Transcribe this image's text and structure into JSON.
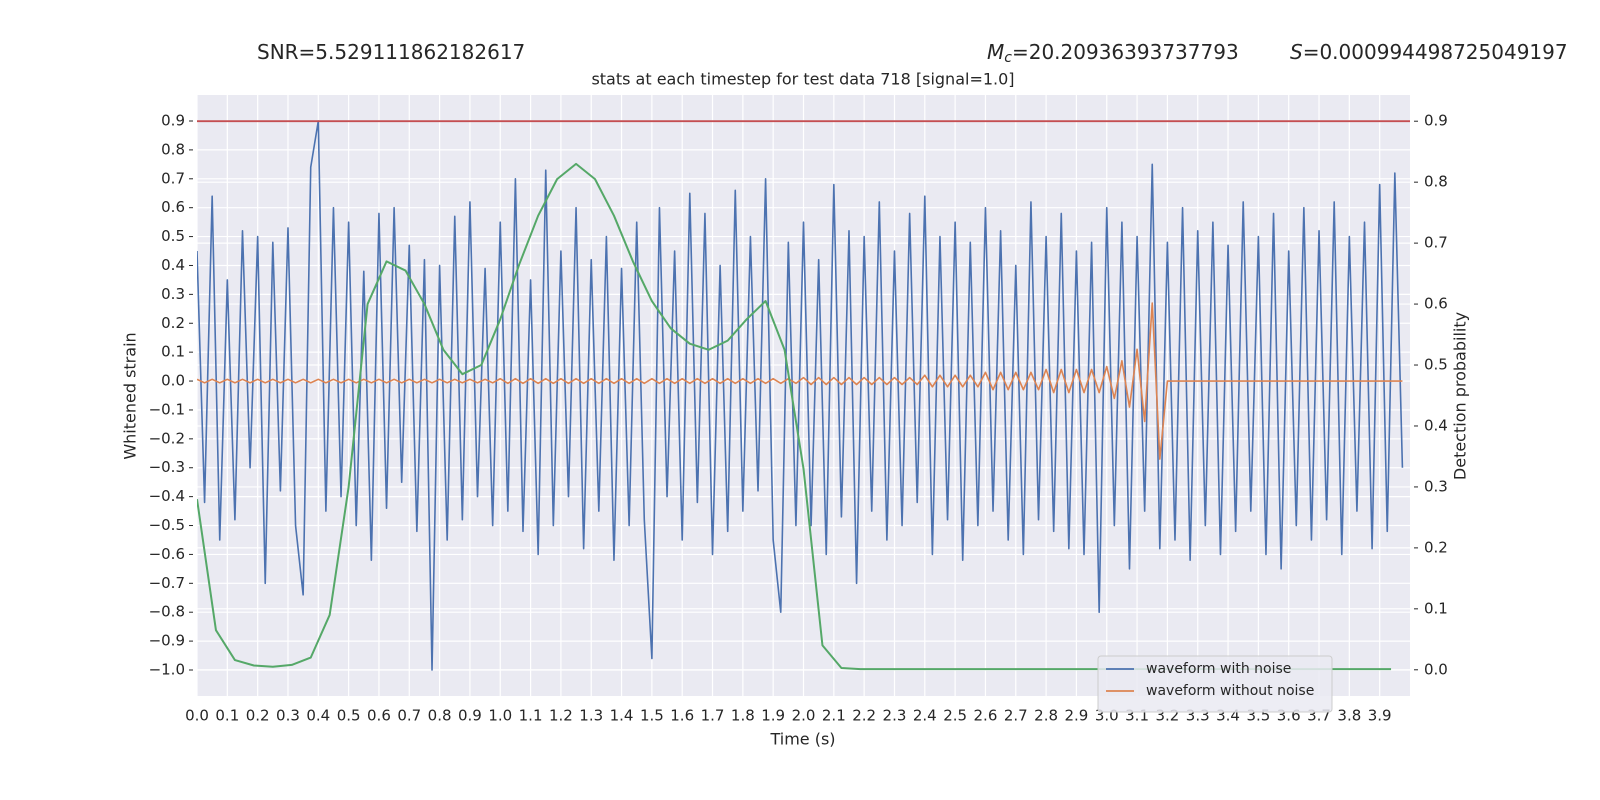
{
  "chart_data": {
    "type": "line",
    "title": "stats at each timestep for test data 718 [signal=1.0]",
    "annotations": [
      {
        "text": "SNR=5.529111862182617"
      },
      {
        "symbol": "M",
        "subscript": "c",
        "text": "=20.20936393737793"
      },
      {
        "symbol": "S",
        "text": "=0.000994498725049197"
      }
    ],
    "xlabel": "Time (s)",
    "ylabel": "Whitened strain",
    "y2label": "Detection probability",
    "grid": true,
    "background": "#eaeaf2",
    "legend_loc": "lower right",
    "xlim": [
      0,
      4.0
    ],
    "ylim": [
      -1.09,
      0.99
    ],
    "y2lim": [
      -0.043,
      0.943
    ],
    "xticks": [
      {
        "value": 0,
        "label": "0.0"
      },
      0.1,
      0.2,
      0.3,
      0.4,
      0.5,
      0.6,
      0.7,
      0.8,
      0.9,
      {
        "value": 1,
        "label": "1.0"
      },
      1.1,
      1.2,
      1.3,
      1.4,
      1.5,
      1.6,
      1.7,
      1.8,
      1.9,
      {
        "value": 2,
        "label": "2.0"
      },
      2.1,
      2.2,
      2.3,
      2.4,
      2.5,
      2.6,
      2.7,
      2.8,
      2.9,
      {
        "value": 3,
        "label": "3.0"
      },
      3.1,
      3.2,
      3.3,
      3.4,
      3.5,
      3.6,
      3.7,
      3.8,
      3.9
    ],
    "yticks": [
      {
        "value": -1.0,
        "label": "−1.0"
      },
      {
        "value": -0.9,
        "label": "−0.9"
      },
      {
        "value": -0.8,
        "label": "−0.8"
      },
      {
        "value": -0.7,
        "label": "−0.7"
      },
      {
        "value": -0.6,
        "label": "−0.6"
      },
      {
        "value": -0.5,
        "label": "−0.5"
      },
      {
        "value": -0.4,
        "label": "−0.4"
      },
      {
        "value": -0.3,
        "label": "−0.3"
      },
      {
        "value": -0.2,
        "label": "−0.2"
      },
      {
        "value": -0.1,
        "label": "−0.1"
      },
      {
        "value": 0,
        "label": "0.0"
      },
      0.1,
      0.2,
      0.3,
      0.4,
      0.5,
      0.6,
      0.7,
      0.8,
      0.9
    ],
    "y2ticks": [
      {
        "value": 0,
        "label": "0.0"
      },
      0.1,
      0.2,
      0.3,
      0.4,
      0.5,
      0.6,
      0.7,
      0.8,
      0.9
    ],
    "threshold": 0.9,
    "threshold_color": "#c44e52",
    "x": [
      0,
      0.025,
      0.05,
      0.075,
      0.1,
      0.125,
      0.15,
      0.175,
      0.2,
      0.225,
      0.25,
      0.275,
      0.3,
      0.325,
      0.35,
      0.375,
      0.4,
      0.425,
      0.45,
      0.475,
      0.5,
      0.525,
      0.55,
      0.575,
      0.6,
      0.625,
      0.65,
      0.675,
      0.7,
      0.725,
      0.75,
      0.775,
      0.8,
      0.825,
      0.85,
      0.875,
      0.9,
      0.925,
      0.95,
      0.975,
      1,
      1.025,
      1.05,
      1.075,
      1.1,
      1.125,
      1.15,
      1.175,
      1.2,
      1.225,
      1.25,
      1.275,
      1.3,
      1.325,
      1.35,
      1.375,
      1.4,
      1.425,
      1.45,
      1.475,
      1.5,
      1.525,
      1.55,
      1.575,
      1.6,
      1.625,
      1.65,
      1.675,
      1.7,
      1.725,
      1.75,
      1.775,
      1.8,
      1.825,
      1.85,
      1.875,
      1.9,
      1.925,
      1.95,
      1.975,
      2,
      2.025,
      2.05,
      2.075,
      2.1,
      2.125,
      2.15,
      2.175,
      2.2,
      2.225,
      2.25,
      2.275,
      2.3,
      2.325,
      2.35,
      2.375,
      2.4,
      2.425,
      2.45,
      2.475,
      2.5,
      2.525,
      2.55,
      2.575,
      2.6,
      2.625,
      2.65,
      2.675,
      2.7,
      2.725,
      2.75,
      2.775,
      2.8,
      2.825,
      2.85,
      2.875,
      2.9,
      2.925,
      2.95,
      2.975,
      3,
      3.025,
      3.05,
      3.075,
      3.1,
      3.125,
      3.15,
      3.175,
      3.2,
      3.225,
      3.25,
      3.275,
      3.3,
      3.325,
      3.35,
      3.375,
      3.4,
      3.425,
      3.45,
      3.475,
      3.5,
      3.525,
      3.55,
      3.575,
      3.6,
      3.625,
      3.65,
      3.675,
      3.7,
      3.725,
      3.75,
      3.775,
      3.8,
      3.825,
      3.85,
      3.875,
      3.9,
      3.925,
      3.95,
      3.975
    ],
    "series": [
      {
        "name": "waveform with noise",
        "color": "#4c72b0",
        "values": [
          0.45,
          -0.42,
          0.64,
          -0.55,
          0.35,
          -0.48,
          0.52,
          -0.3,
          0.5,
          -0.7,
          0.48,
          -0.38,
          0.53,
          -0.5,
          -0.74,
          0.74,
          0.9,
          -0.45,
          0.6,
          -0.4,
          0.55,
          -0.5,
          0.38,
          -0.62,
          0.58,
          -0.44,
          0.6,
          -0.35,
          0.47,
          -0.52,
          0.42,
          -1.0,
          0.4,
          -0.55,
          0.57,
          -0.48,
          0.62,
          -0.4,
          0.39,
          -0.5,
          0.55,
          -0.45,
          0.7,
          -0.52,
          0.35,
          -0.6,
          0.73,
          -0.5,
          0.45,
          -0.4,
          0.6,
          -0.58,
          0.42,
          -0.45,
          0.5,
          -0.62,
          0.39,
          -0.5,
          0.55,
          -0.48,
          -0.96,
          0.6,
          -0.4,
          0.45,
          -0.55,
          0.65,
          -0.42,
          0.58,
          -0.6,
          0.4,
          -0.52,
          0.66,
          -0.45,
          0.5,
          -0.38,
          0.7,
          -0.55,
          -0.8,
          0.48,
          -0.5,
          0.55,
          -0.5,
          0.42,
          -0.6,
          0.68,
          -0.47,
          0.52,
          -0.7,
          0.5,
          -0.45,
          0.62,
          -0.55,
          0.45,
          -0.5,
          0.58,
          -0.42,
          0.64,
          -0.6,
          0.5,
          -0.48,
          0.55,
          -0.62,
          0.48,
          -0.5,
          0.6,
          -0.45,
          0.52,
          -0.55,
          0.4,
          -0.6,
          0.62,
          -0.48,
          0.5,
          -0.52,
          0.58,
          -0.58,
          0.45,
          -0.6,
          0.48,
          -0.8,
          0.6,
          -0.5,
          0.55,
          -0.65,
          0.5,
          -0.45,
          0.75,
          -0.58,
          0.48,
          -0.55,
          0.6,
          -0.62,
          0.52,
          -0.5,
          0.55,
          -0.6,
          0.47,
          -0.52,
          0.62,
          -0.45,
          0.5,
          -0.6,
          0.58,
          -0.65,
          0.45,
          -0.5,
          0.6,
          -0.55,
          0.52,
          -0.48,
          0.62,
          -0.6,
          0.5,
          -0.45,
          0.55,
          -0.58,
          0.68,
          -0.52,
          0.72,
          -0.3
        ]
      },
      {
        "name": "waveform without noise",
        "color": "#dd8452",
        "values": [
          0.006,
          -0.006,
          0.006,
          -0.006,
          0.006,
          -0.006,
          0.006,
          -0.006,
          0.006,
          -0.006,
          0.006,
          -0.006,
          0.006,
          -0.006,
          0.006,
          -0.006,
          0.006,
          -0.006,
          0.006,
          -0.006,
          0.006,
          -0.006,
          0.006,
          -0.006,
          0.006,
          -0.006,
          0.006,
          -0.006,
          0.006,
          -0.006,
          0.006,
          -0.006,
          0.006,
          -0.006,
          0.006,
          -0.006,
          0.006,
          -0.006,
          0.006,
          -0.006,
          0.008,
          -0.008,
          0.008,
          -0.008,
          0.008,
          -0.008,
          0.008,
          -0.008,
          0.008,
          -0.008,
          0.008,
          -0.008,
          0.008,
          -0.008,
          0.008,
          -0.008,
          0.008,
          -0.008,
          0.008,
          -0.008,
          0.008,
          -0.008,
          0.008,
          -0.008,
          0.008,
          -0.008,
          0.008,
          -0.008,
          0.008,
          -0.008,
          0.008,
          -0.008,
          0.008,
          -0.008,
          0.008,
          -0.008,
          0.008,
          -0.008,
          0.008,
          -0.008,
          0.012,
          -0.012,
          0.012,
          -0.012,
          0.012,
          -0.012,
          0.012,
          -0.012,
          0.012,
          -0.012,
          0.012,
          -0.012,
          0.012,
          -0.012,
          0.012,
          -0.012,
          0.02,
          -0.02,
          0.02,
          -0.02,
          0.02,
          -0.02,
          0.02,
          -0.02,
          0.03,
          -0.03,
          0.03,
          -0.03,
          0.03,
          -0.03,
          0.03,
          -0.03,
          0.04,
          -0.04,
          0.04,
          -0.04,
          0.04,
          -0.04,
          0.04,
          -0.04,
          0.05,
          -0.06,
          0.07,
          -0.09,
          0.11,
          -0.14,
          0.27,
          -0.27,
          0,
          0,
          0,
          0,
          0,
          0,
          0,
          0,
          0,
          0,
          0,
          0,
          0,
          0,
          0,
          0,
          0,
          0,
          0,
          0,
          0,
          0,
          0,
          0,
          0,
          0,
          0,
          0,
          0,
          0,
          0,
          0
        ]
      },
      {
        "color": "#55a868",
        "axis": "y2",
        "x": [
          0,
          0.0625,
          0.125,
          0.1875,
          0.25,
          0.3125,
          0.375,
          0.4375,
          0.5,
          0.5625,
          0.625,
          0.6875,
          0.75,
          0.8125,
          0.875,
          0.9375,
          1,
          1.0625,
          1.125,
          1.1875,
          1.25,
          1.3125,
          1.375,
          1.4375,
          1.5,
          1.5625,
          1.625,
          1.6875,
          1.75,
          1.8125,
          1.875,
          1.9375,
          2,
          2.0625,
          2.125,
          2.1875,
          2.25,
          2.3125,
          2.375,
          2.4375,
          2.5,
          2.5625,
          2.625,
          2.6875,
          2.75,
          2.8125,
          2.875,
          2.9375,
          3,
          3.0625,
          3.125,
          3.1875,
          3.25,
          3.3125,
          3.375,
          3.4375,
          3.5,
          3.5625,
          3.625,
          3.6875,
          3.75,
          3.8125,
          3.875,
          3.9375
        ],
        "values": [
          0.28,
          0.065,
          0.016,
          0.007,
          0.005,
          0.008,
          0.02,
          0.09,
          0.3,
          0.6,
          0.67,
          0.655,
          0.6,
          0.525,
          0.485,
          0.5,
          0.575,
          0.665,
          0.745,
          0.805,
          0.83,
          0.805,
          0.745,
          0.67,
          0.605,
          0.56,
          0.535,
          0.525,
          0.54,
          0.575,
          0.605,
          0.525,
          0.33,
          0.04,
          0.003,
          0.001,
          0.001,
          0.001,
          0.001,
          0.001,
          0.001,
          0.001,
          0.001,
          0.001,
          0.001,
          0.001,
          0.001,
          0.001,
          0.001,
          0.001,
          0.001,
          0.001,
          0.001,
          0.001,
          0.001,
          0.001,
          0.001,
          0.001,
          0.001,
          0.001,
          0.001,
          0.001,
          0.001,
          0.001
        ]
      }
    ]
  }
}
